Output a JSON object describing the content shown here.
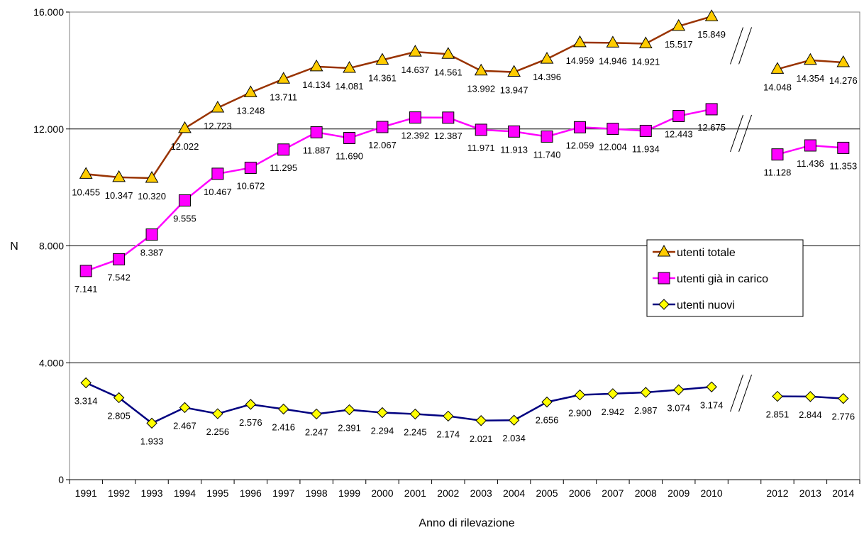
{
  "chart_data": {
    "type": "line",
    "xlabel": "Anno di rilevazione",
    "ylabel": "N",
    "ylim": [
      0,
      16000
    ],
    "yticks": [
      "0",
      "4.000",
      "8.000",
      "12.000",
      "16.000"
    ],
    "ytick_values": [
      0,
      4000,
      8000,
      12000,
      16000
    ],
    "grid": "horizontal",
    "legend_position": "right",
    "categories": [
      "1991",
      "1992",
      "1993",
      "1994",
      "1995",
      "1996",
      "1997",
      "1998",
      "1999",
      "2000",
      "2001",
      "2002",
      "2003",
      "2004",
      "2005",
      "2006",
      "2007",
      "2008",
      "2009",
      "2010",
      "",
      "2012",
      "2013",
      "2014"
    ],
    "series": [
      {
        "name": "utenti totale",
        "marker": "triangle",
        "line_color": "#993300",
        "marker_color": "#ffcc00",
        "values": [
          10455,
          10347,
          10320,
          12022,
          12723,
          13248,
          13711,
          14134,
          14081,
          14361,
          14637,
          14561,
          13992,
          13947,
          14396,
          14959,
          14946,
          14921,
          15517,
          15849,
          null,
          14048,
          14354,
          14276
        ],
        "labels": [
          "10.455",
          "10.347",
          "10.320",
          "12.022",
          "12.723",
          "13.248",
          "13.711",
          "14.134",
          "14.081",
          "14.361",
          "14.637",
          "14.561",
          "13.992",
          "13.947",
          "14.396",
          "14.959",
          "14.946",
          "14.921",
          "15.517",
          "15.849",
          "",
          "14.048",
          "14.354",
          "14.276"
        ]
      },
      {
        "name": "utenti già in carico",
        "marker": "square",
        "line_color": "#ff00ff",
        "marker_color": "#ff00ff",
        "values": [
          7141,
          7542,
          8387,
          9555,
          10467,
          10672,
          11295,
          11887,
          11690,
          12067,
          12392,
          12387,
          11971,
          11913,
          11740,
          12059,
          12004,
          11934,
          12443,
          12675,
          null,
          11128,
          11436,
          11353
        ],
        "labels": [
          "7.141",
          "7.542",
          "8.387",
          "9.555",
          "10.467",
          "10.672",
          "11.295",
          "11.887",
          "11.690",
          "12.067",
          "12.392",
          "12.387",
          "11.971",
          "11.913",
          "11.740",
          "12.059",
          "12.004",
          "11.934",
          "12.443",
          "12.675",
          "",
          "11.128",
          "11.436",
          "11.353"
        ]
      },
      {
        "name": "utenti nuovi",
        "marker": "diamond",
        "line_color": "#000080",
        "marker_color": "#ffff00",
        "values": [
          3314,
          2805,
          1933,
          2467,
          2256,
          2576,
          2416,
          2247,
          2391,
          2294,
          2245,
          2174,
          2021,
          2034,
          2656,
          2900,
          2942,
          2987,
          3074,
          3174,
          null,
          2851,
          2844,
          2776
        ],
        "labels": [
          "3.314",
          "2.805",
          "1.933",
          "2.467",
          "2.256",
          "2.576",
          "2.416",
          "2.247",
          "2.391",
          "2.294",
          "2.245",
          "2.174",
          "2.021",
          "2.034",
          "2.656",
          "2.900",
          "2.942",
          "2.987",
          "3.074",
          "3.174",
          "",
          "2.851",
          "2.844",
          "2.776"
        ]
      }
    ]
  }
}
